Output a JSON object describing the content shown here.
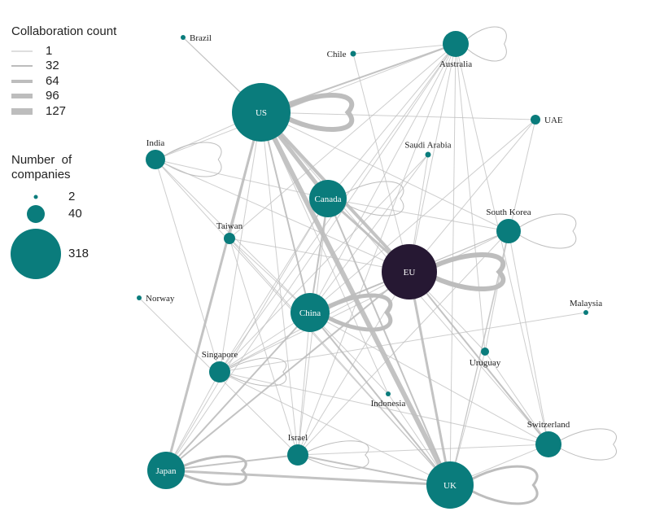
{
  "legend": {
    "edge_title": "Collaboration count",
    "edge_items": [
      "1",
      "32",
      "64",
      "96",
      "127"
    ],
    "node_title_line1": "Number  of",
    "node_title_line2": "companies",
    "node_items": [
      "2",
      "40",
      "318"
    ]
  },
  "colors": {
    "node": "#0a7c7c",
    "eu": "#261833",
    "edge": "#bdbdbd"
  },
  "nodes": [
    {
      "id": "brazil",
      "label": "Brazil"
    },
    {
      "id": "chile",
      "label": "Chile"
    },
    {
      "id": "australia",
      "label": "Australia"
    },
    {
      "id": "us",
      "label": "US"
    },
    {
      "id": "uae",
      "label": "UAE"
    },
    {
      "id": "india",
      "label": "India"
    },
    {
      "id": "saudi",
      "label": "Saudi Arabia"
    },
    {
      "id": "canada",
      "label": "Canada"
    },
    {
      "id": "taiwan",
      "label": "Taiwan"
    },
    {
      "id": "southkorea",
      "label": "South Korea"
    },
    {
      "id": "eu",
      "label": "EU"
    },
    {
      "id": "norway",
      "label": "Norway"
    },
    {
      "id": "china",
      "label": "China"
    },
    {
      "id": "malaysia",
      "label": "Malaysia"
    },
    {
      "id": "singapore",
      "label": "Singapore"
    },
    {
      "id": "uruguay",
      "label": "Uruguay"
    },
    {
      "id": "indonesia",
      "label": "Indonesia"
    },
    {
      "id": "switzerland",
      "label": "Switzerland"
    },
    {
      "id": "israel",
      "label": "Israel"
    },
    {
      "id": "japan",
      "label": "Japan"
    },
    {
      "id": "uk",
      "label": "UK"
    }
  ]
}
